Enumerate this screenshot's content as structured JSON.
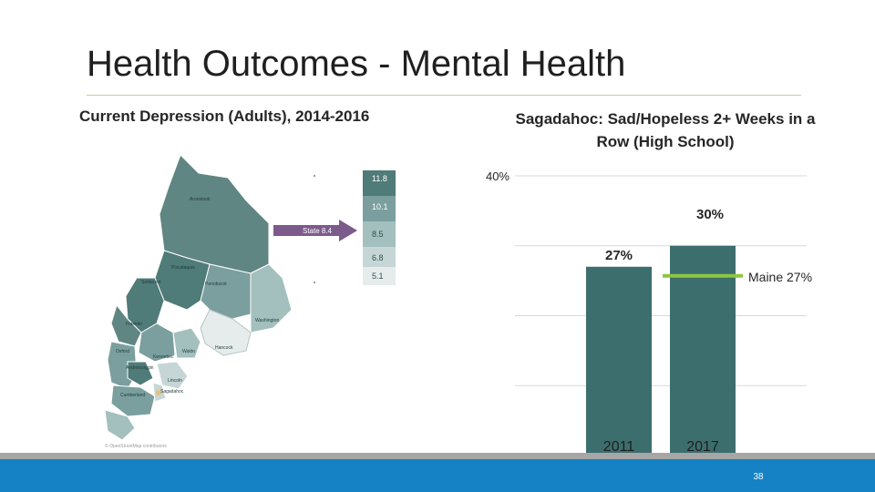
{
  "slide": {
    "title": "Health Outcomes - Mental Health",
    "page_number": "38"
  },
  "map": {
    "heading": "Current Depression (Adults), 2014-2016",
    "legend_values": [
      "11.8",
      "10.1",
      "8.5",
      "6.8",
      "5.1"
    ],
    "legend_colors": [
      "#4f7b78",
      "#7a9f9e",
      "#a3bfbe",
      "#c6d6d6",
      "#e6ecec"
    ],
    "state_callout": "State 8.4",
    "county_labels": [
      "Aroostook",
      "Piscataquis",
      "Somerset",
      "Penobscot",
      "Washington",
      "Franklin",
      "Oxford",
      "Kennebec",
      "Waldo",
      "Hancock",
      "Androscoggin",
      "Lincoln",
      "Cumberland",
      "Sagadahoc"
    ],
    "attribution": "© OpenStreetMap contributors",
    "accent_color": "#7d5a8c"
  },
  "chart_data": {
    "type": "bar",
    "title": "Sagadahoc: Sad/Hopeless 2+ Weeks in a Row (High School)",
    "categories": [
      "2011",
      "2017"
    ],
    "values": [
      27,
      30
    ],
    "data_labels": [
      "27%",
      "30%"
    ],
    "ylim": [
      0,
      40
    ],
    "y_tick_label": "40%",
    "gridlines": true,
    "bar_color": "#3c6e6d",
    "reference_line": {
      "label": "Maine 27%",
      "value": 27,
      "category": "2017",
      "color": "#8dc63f"
    }
  }
}
